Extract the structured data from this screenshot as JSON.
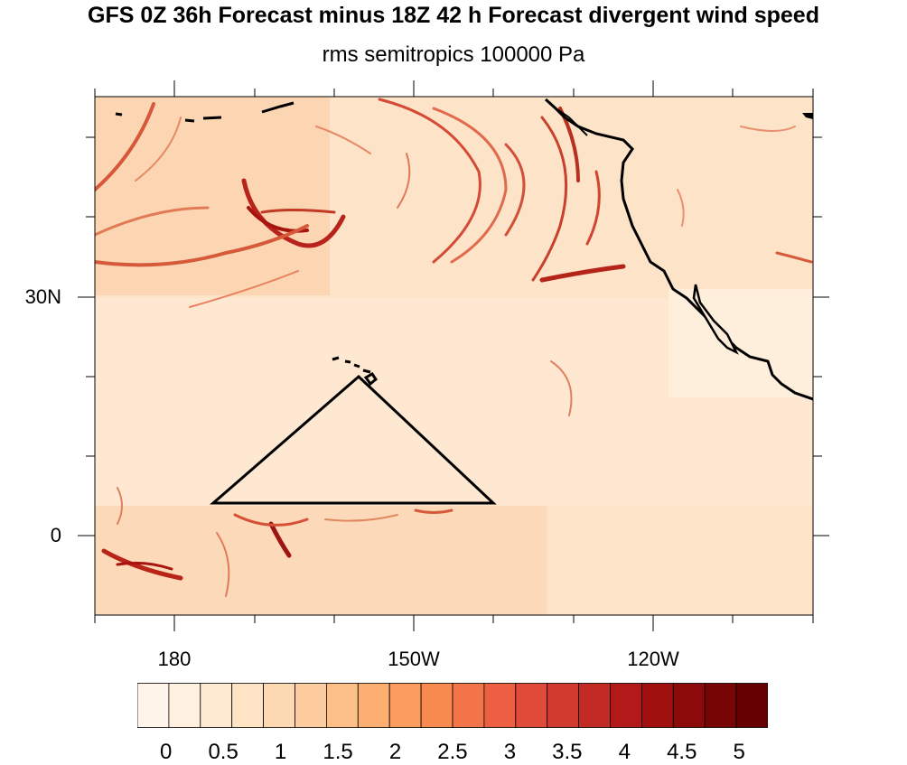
{
  "title": "GFS 0Z 36h Forecast minus 18Z 42 h Forecast divergent wind speed",
  "subtitle": "rms semitropics 100000 Pa",
  "y_axis": {
    "labels": [
      "30N",
      "0"
    ]
  },
  "x_axis": {
    "labels": [
      "180",
      "150W",
      "120W"
    ]
  },
  "colorbar": {
    "labels": [
      "0",
      "0.5",
      "1",
      "1.5",
      "2",
      "2.5",
      "3",
      "3.5",
      "4",
      "4.5",
      "5"
    ],
    "colors": [
      "#fff5eb",
      "#fff0df",
      "#feead3",
      "#fee3c4",
      "#fdd9b3",
      "#fdcda0",
      "#fdbf88",
      "#fdaf72",
      "#fc9c5e",
      "#f98a4f",
      "#f4744a",
      "#ec5f42",
      "#e04a39",
      "#d13a2e",
      "#c22a24",
      "#b21a1a",
      "#a0100f",
      "#8c0a0a",
      "#780505",
      "#660000"
    ]
  }
}
